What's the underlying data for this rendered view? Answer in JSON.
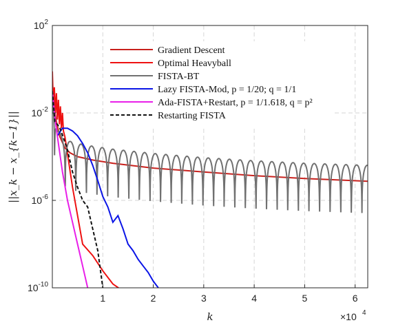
{
  "chart_data": {
    "type": "line",
    "title": "",
    "xlabel": "k",
    "ylabel": "||x_k − x_{k−1}||",
    "x_multiplier_label": "×10",
    "x_multiplier_exponent": "4",
    "xlim": [
      0,
      62500
    ],
    "ylim": [
      1e-10,
      100
    ],
    "yscale": "log",
    "grid": true,
    "legend_position": "top",
    "x_ticks": [
      {
        "value": 10000,
        "label": "1"
      },
      {
        "value": 20000,
        "label": "2"
      },
      {
        "value": 30000,
        "label": "3"
      },
      {
        "value": 40000,
        "label": "4"
      },
      {
        "value": 50000,
        "label": "5"
      },
      {
        "value": 60000,
        "label": "6"
      }
    ],
    "y_ticks": [
      {
        "value": 100,
        "base": "10",
        "exp": "2"
      },
      {
        "value": 0.01,
        "base": "10",
        "exp": "-2"
      },
      {
        "value": 1e-06,
        "base": "10",
        "exp": "-6"
      },
      {
        "value": 1e-10,
        "base": "10",
        "exp": "-10"
      }
    ],
    "series": [
      {
        "name": "Gradient Descent",
        "color": "#c8201c",
        "dash": "",
        "x": [
          0,
          300,
          800,
          1500,
          2500,
          3500,
          5000,
          8000,
          12000,
          20000,
          30000,
          40000,
          50000,
          62500
        ],
        "y": [
          0.08,
          0.02,
          0.004,
          0.0008,
          0.00025,
          0.00015,
          0.0001,
          7e-05,
          5e-05,
          3e-05,
          2e-05,
          1.35e-05,
          1e-05,
          7.5e-06
        ]
      },
      {
        "name": "Optimal Heavyball",
        "color": "#ee1111",
        "dash": "",
        "x": [
          0,
          200,
          400,
          600,
          800,
          1000,
          1200,
          1400,
          1600,
          1800,
          2000,
          2200,
          2500,
          4000,
          6000,
          8000,
          10000,
          12000,
          15000
        ],
        "y": [
          0.8,
          0.02,
          0.15,
          0.01,
          0.08,
          0.005,
          0.04,
          0.003,
          0.02,
          0.002,
          0.01,
          0.0015,
          0.0008,
          4e-06,
          1e-08,
          3e-09,
          6e-10,
          1.5e-10,
          5e-11
        ]
      },
      {
        "name": "FISTA-BT",
        "color": "#707070",
        "dash": "",
        "period": 2100,
        "x": [
          0,
          1000,
          2000,
          3500,
          5000,
          8000,
          12000,
          20000,
          30000,
          40000,
          50000,
          62500
        ],
        "y": [
          0.1,
          0.002,
          0.0008,
          0.0005,
          0.0004,
          0.0003,
          0.00022,
          0.00014,
          9e-05,
          6.5e-05,
          5e-05,
          4e-05
        ]
      },
      {
        "name": "Lazy FISTA-Mod, p = 1/20; q = 1/1",
        "color": "#0a14e6",
        "dash": "",
        "x": [
          1000,
          2000,
          3000,
          4000,
          5000,
          6000,
          7000,
          8000,
          9000,
          10000,
          11000,
          12000,
          13000,
          14000,
          15000,
          16000,
          17000,
          18000,
          19000,
          20000,
          21000
        ],
        "y": [
          0.0009,
          0.002,
          0.002,
          0.0015,
          0.0009,
          0.0004,
          0.00015,
          4e-05,
          8e-06,
          1.5e-06,
          5e-07,
          1e-07,
          2e-07,
          5e-08,
          1e-08,
          5e-09,
          2e-09,
          1e-09,
          5e-10,
          2e-10,
          1e-10
        ]
      },
      {
        "name": "Ada-FISTA+Restart, p = 1/1.618, q = p²",
        "color": "#e81ee8",
        "dash": "",
        "x": [
          0,
          600,
          1200,
          2000,
          3000,
          4000,
          5000,
          6000,
          7000
        ],
        "y": [
          0.1,
          0.004,
          0.0004,
          2e-05,
          1e-06,
          1e-07,
          1e-08,
          1e-09,
          1e-10
        ]
      },
      {
        "name": "Restarting FISTA",
        "color": "#111111",
        "dash": "5,3",
        "x": [
          0,
          500,
          1000,
          1500,
          2000,
          3000,
          4000,
          5000,
          6000,
          7000,
          8000,
          9000,
          10000
        ],
        "y": [
          0.1,
          0.004,
          0.003,
          0.002,
          0.001,
          0.0002,
          2e-05,
          4e-06,
          1e-06,
          5e-07,
          5e-08,
          5e-09,
          1e-10
        ]
      }
    ],
    "legend": [
      {
        "label": "Gradient Descent",
        "color": "#c8201c",
        "dash": ""
      },
      {
        "label": "Optimal Heavyball",
        "color": "#ee1111",
        "dash": ""
      },
      {
        "label": "FISTA-BT",
        "color": "#707070",
        "dash": ""
      },
      {
        "label": "Lazy FISTA-Mod, p = 1/20; q = 1/1",
        "color": "#0a14e6",
        "dash": ""
      },
      {
        "label": "Ada-FISTA+Restart, p = 1/1.618, q = p²",
        "color": "#e81ee8",
        "dash": ""
      },
      {
        "label": "Restarting FISTA",
        "color": "#111111",
        "dash": "5,3"
      }
    ]
  }
}
